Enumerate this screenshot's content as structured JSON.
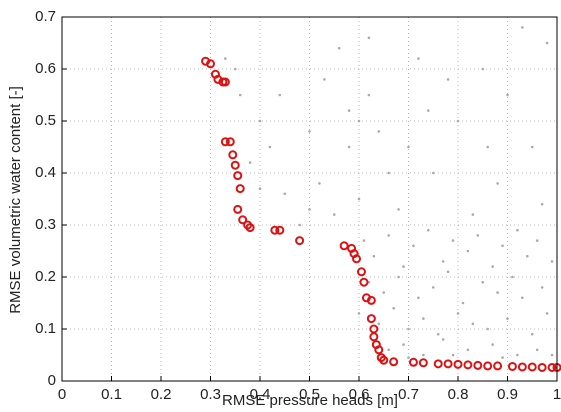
{
  "chart_data": {
    "type": "scatter",
    "xlabel": "RMSE pressure heads [m]",
    "ylabel": "RMSE  volumetric water content [-]",
    "xlim": [
      0,
      1
    ],
    "ylim": [
      0,
      0.7
    ],
    "xticks": [
      0,
      0.1,
      0.2,
      0.3,
      0.4,
      0.5,
      0.6,
      0.7,
      0.8,
      0.9,
      1
    ],
    "yticks": [
      0,
      0.1,
      0.2,
      0.3,
      0.4,
      0.5,
      0.6,
      0.7
    ],
    "grid": true,
    "series": [
      {
        "color": "#aaaaaa",
        "marker": "dot",
        "x": [
          0.58,
          0.6,
          0.62,
          0.58,
          0.64,
          0.7,
          0.75,
          0.8,
          0.85,
          0.9,
          0.95,
          0.98,
          0.72,
          0.66,
          0.88,
          0.93,
          0.78,
          0.6,
          0.68,
          0.83,
          0.97,
          0.62,
          0.56,
          0.86,
          0.74,
          0.33,
          0.36,
          0.4,
          0.42,
          0.38,
          0.45,
          0.5,
          0.52,
          0.48,
          0.55,
          0.4,
          0.35,
          0.44,
          0.5,
          0.53,
          0.61,
          0.63,
          0.66,
          0.69,
          0.71,
          0.74,
          0.77,
          0.79,
          0.82,
          0.84,
          0.87,
          0.89,
          0.92,
          0.94,
          0.96,
          0.99,
          0.62,
          0.65,
          0.68,
          0.72,
          0.75,
          0.78,
          0.81,
          0.85,
          0.88,
          0.91,
          0.93,
          0.97,
          0.6,
          0.64,
          0.67,
          0.7,
          0.73,
          0.76,
          0.8,
          0.83,
          0.86,
          0.9,
          0.95,
          0.98,
          0.66,
          0.69,
          0.73,
          0.77,
          0.82,
          0.87,
          0.92,
          0.96,
          0.7,
          0.79,
          0.89,
          0.99
        ],
        "values": [
          0.45,
          0.5,
          0.55,
          0.52,
          0.48,
          0.45,
          0.4,
          0.5,
          0.6,
          0.55,
          0.45,
          0.65,
          0.62,
          0.4,
          0.38,
          0.68,
          0.58,
          0.35,
          0.33,
          0.32,
          0.34,
          0.66,
          0.64,
          0.45,
          0.52,
          0.62,
          0.55,
          0.5,
          0.45,
          0.42,
          0.36,
          0.33,
          0.38,
          0.3,
          0.32,
          0.37,
          0.6,
          0.55,
          0.48,
          0.58,
          0.27,
          0.24,
          0.28,
          0.22,
          0.26,
          0.29,
          0.23,
          0.27,
          0.25,
          0.28,
          0.22,
          0.26,
          0.29,
          0.24,
          0.27,
          0.23,
          0.19,
          0.17,
          0.2,
          0.16,
          0.18,
          0.21,
          0.15,
          0.19,
          0.17,
          0.2,
          0.16,
          0.18,
          0.13,
          0.11,
          0.14,
          0.1,
          0.12,
          0.09,
          0.13,
          0.11,
          0.1,
          0.12,
          0.09,
          0.13,
          0.06,
          0.07,
          0.05,
          0.08,
          0.06,
          0.07,
          0.05,
          0.06,
          0.045,
          0.05,
          0.045,
          0.05
        ]
      },
      {
        "color": "#dd1111",
        "marker": "circle",
        "x": [
          0.29,
          0.3,
          0.31,
          0.315,
          0.325,
          0.33,
          0.33,
          0.34,
          0.345,
          0.35,
          0.355,
          0.36,
          0.355,
          0.365,
          0.375,
          0.38,
          0.43,
          0.44,
          0.48,
          0.57,
          0.585,
          0.59,
          0.595,
          0.605,
          0.61,
          0.615,
          0.625,
          0.625,
          0.63,
          0.63,
          0.635,
          0.64,
          0.645,
          0.65,
          0.67,
          0.71,
          0.73,
          0.76,
          0.78,
          0.8,
          0.82,
          0.84,
          0.86,
          0.88,
          0.91,
          0.93,
          0.95,
          0.97,
          0.99,
          1.0
        ],
        "values": [
          0.615,
          0.61,
          0.59,
          0.58,
          0.575,
          0.575,
          0.46,
          0.46,
          0.435,
          0.415,
          0.395,
          0.37,
          0.33,
          0.31,
          0.3,
          0.295,
          0.29,
          0.29,
          0.27,
          0.26,
          0.255,
          0.245,
          0.235,
          0.21,
          0.19,
          0.16,
          0.155,
          0.12,
          0.1,
          0.085,
          0.07,
          0.06,
          0.045,
          0.04,
          0.037,
          0.036,
          0.035,
          0.033,
          0.033,
          0.032,
          0.031,
          0.03,
          0.029,
          0.029,
          0.028,
          0.027,
          0.027,
          0.026,
          0.026,
          0.026
        ]
      }
    ]
  }
}
